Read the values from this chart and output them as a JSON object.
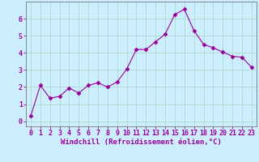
{
  "x": [
    0,
    1,
    2,
    3,
    4,
    5,
    6,
    7,
    8,
    9,
    10,
    11,
    12,
    13,
    14,
    15,
    16,
    17,
    18,
    19,
    20,
    21,
    22,
    23
  ],
  "y": [
    0.3,
    2.1,
    1.35,
    1.45,
    1.95,
    1.65,
    2.1,
    2.25,
    2.0,
    2.3,
    3.05,
    4.2,
    4.2,
    4.65,
    5.1,
    6.25,
    6.55,
    5.3,
    4.5,
    4.3,
    4.05,
    3.8,
    3.75,
    3.15
  ],
  "line_color": "#990099",
  "marker": "D",
  "marker_size": 2.5,
  "bg_color": "#cceeff",
  "grid_color": "#aaddcc",
  "xlabel": "Windchill (Refroidissement éolien,°C)",
  "xlabel_color": "#990099",
  "tick_color": "#990099",
  "axis_color": "#777777",
  "xlim": [
    -0.5,
    23.5
  ],
  "ylim": [
    -0.3,
    7.0
  ],
  "yticks": [
    0,
    1,
    2,
    3,
    4,
    5,
    6
  ],
  "xticks": [
    0,
    1,
    2,
    3,
    4,
    5,
    6,
    7,
    8,
    9,
    10,
    11,
    12,
    13,
    14,
    15,
    16,
    17,
    18,
    19,
    20,
    21,
    22,
    23
  ],
  "xlabel_fontsize": 6.5,
  "tick_fontsize": 6.0,
  "linewidth": 0.8
}
